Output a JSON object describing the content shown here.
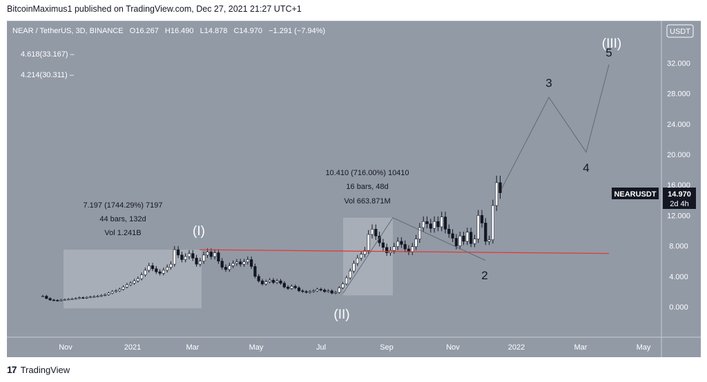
{
  "header": {
    "published": "BitcoinMaximus1 published on TradingView.com, Dec 27, 2021 21:27 UTC+1"
  },
  "legend": {
    "symbol": "NEAR / TetherUS, 3D, BINANCE",
    "o_label": "O",
    "o_value": "16.267",
    "h_label": "H",
    "h_value": "16.490",
    "l_label": "L",
    "l_value": "14.878",
    "c_label": "C",
    "c_value": "14.970",
    "change": "−1.291 (−7.94%)"
  },
  "currency": "USDT",
  "fib_levels": [
    {
      "label": "4.618(33.167)",
      "value": 33.167
    },
    {
      "label": "4.214(30.311)",
      "value": 30.311
    }
  ],
  "price_tag": {
    "symbol": "NEARUSDT",
    "price": "14.970",
    "countdown": "2d 4h"
  },
  "measure_1": {
    "line1": "7.197 (1744.29%) 7197",
    "line2": "44 bars, 132d",
    "line3": "Vol 1.241B"
  },
  "measure_2": {
    "line1": "10.410 (716.00%) 10410",
    "line2": "16 bars, 48d",
    "line3": "Vol 663.871M"
  },
  "waves": {
    "w1": "(I)",
    "w2": "(II)",
    "w3": "(III)",
    "s2": "2",
    "s3": "3",
    "s4": "4",
    "s5": "5"
  },
  "footer": {
    "brand": "TradingView",
    "logo": "17"
  },
  "chart_data": {
    "type": "candlestick",
    "title": "NEAR / TetherUS, 3D, BINANCE",
    "x_tick_labels": [
      "Nov",
      "2021",
      "Mar",
      "May",
      "Jul",
      "Sep",
      "Nov",
      "2022",
      "Mar",
      "May"
    ],
    "y_tick_labels": [
      "0.000",
      "4.000",
      "8.000",
      "12.000",
      "16.000",
      "20.000",
      "24.000",
      "28.000",
      "32.000"
    ],
    "ylim": [
      -3.5,
      36
    ],
    "resistance_line": {
      "color": "#e53935",
      "from": 7.5,
      "to": 7.0
    },
    "wave_projection_path": [
      15.5,
      27.5,
      20.3,
      31.8
    ],
    "series": [
      {
        "name": "NEARUSDT",
        "closes": [
          1.4,
          1.1,
          0.9,
          0.85,
          0.8,
          0.9,
          0.95,
          1.0,
          1.05,
          1.1,
          1.2,
          1.15,
          1.25,
          1.3,
          1.35,
          1.4,
          1.5,
          1.6,
          1.8,
          2.0,
          2.1,
          2.3,
          2.6,
          2.9,
          3.1,
          3.4,
          3.7,
          4.2,
          4.8,
          5.4,
          5.0,
          4.6,
          4.4,
          4.8,
          5.2,
          5.6,
          7.5,
          6.8,
          6.2,
          6.6,
          7.0,
          6.4,
          5.6,
          6.0,
          6.8,
          7.2,
          6.6,
          7.1,
          6.0,
          5.2,
          4.9,
          5.4,
          5.7,
          5.9,
          5.6,
          5.9,
          6.2,
          5.3,
          4.0,
          3.4,
          3.0,
          3.3,
          3.5,
          3.2,
          3.4,
          3.1,
          2.6,
          2.4,
          2.7,
          2.5,
          2.1,
          2.0,
          1.9,
          2.0,
          2.1,
          2.3,
          2.2,
          2.0,
          2.1,
          1.8,
          1.9,
          2.5,
          3.0,
          3.8,
          4.7,
          5.7,
          6.4,
          6.9,
          7.4,
          9.5,
          10.2,
          9.3,
          8.4,
          7.8,
          7.1,
          7.4,
          7.9,
          8.6,
          8.2,
          7.6,
          7.2,
          7.9,
          8.9,
          10.4,
          11.2,
          10.9,
          10.3,
          11.2,
          10.5,
          11.8,
          10.2,
          9.6,
          9.0,
          8.0,
          9.3,
          8.6,
          9.8,
          8.3,
          8.9,
          12.0,
          11.0,
          8.6,
          8.8,
          13.3,
          16.3,
          14.97
        ]
      }
    ]
  }
}
